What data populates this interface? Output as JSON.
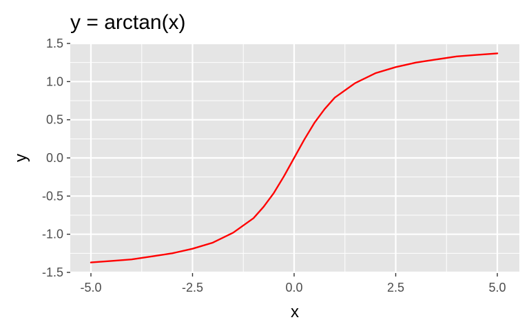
{
  "chart_data": {
    "type": "line",
    "title": "y = arctan(x)",
    "xlabel": "x",
    "ylabel": "y",
    "xlim": [
      -5.0,
      5.0
    ],
    "ylim": [
      -1.5,
      1.5
    ],
    "x_ticks": [
      -5.0,
      -2.5,
      0.0,
      2.5,
      5.0
    ],
    "x_tick_labels": [
      "-5.0",
      "-2.5",
      "0.0",
      "2.5",
      "5.0"
    ],
    "y_ticks": [
      -1.5,
      -1.0,
      -0.5,
      0.0,
      0.5,
      1.0,
      1.5
    ],
    "y_tick_labels": [
      "-1.5",
      "-1.0",
      "-0.5",
      "0.0",
      "0.5",
      "1.0",
      "1.5"
    ],
    "grid": true,
    "series": [
      {
        "color": "#ff0000",
        "x": [
          -5.0,
          -4.5,
          -4.0,
          -3.5,
          -3.0,
          -2.5,
          -2.0,
          -1.5,
          -1.0,
          -0.75,
          -0.5,
          -0.25,
          0.0,
          0.25,
          0.5,
          0.75,
          1.0,
          1.5,
          2.0,
          2.5,
          3.0,
          3.5,
          4.0,
          4.5,
          5.0
        ],
        "y": [
          -1.37,
          -1.35,
          -1.33,
          -1.29,
          -1.25,
          -1.19,
          -1.11,
          -0.98,
          -0.79,
          -0.64,
          -0.46,
          -0.24,
          0.0,
          0.24,
          0.46,
          0.64,
          0.79,
          0.98,
          1.11,
          1.19,
          1.25,
          1.29,
          1.33,
          1.35,
          1.37
        ]
      }
    ]
  },
  "colors": {
    "panel_background": "#e5e5e5",
    "grid": "#ffffff",
    "line": "#ff0000"
  }
}
